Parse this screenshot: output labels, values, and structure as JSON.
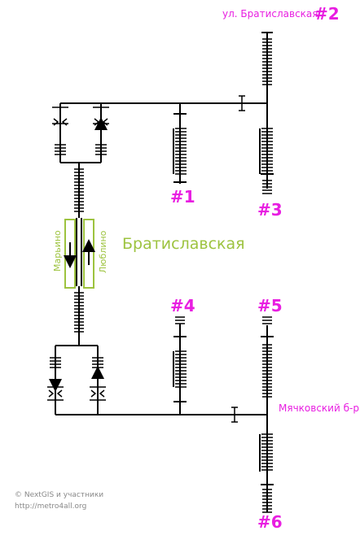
{
  "station_name": "Братиславская",
  "directions": {
    "left": "Марьино",
    "right": "Люблино"
  },
  "streets": {
    "top": "ул. Братиславская",
    "bottom": "Мячковский б-р"
  },
  "exits": {
    "n1": "#1",
    "n2": "#2",
    "n3": "#3",
    "n4": "#4",
    "n5": "#5",
    "n6": "#6"
  },
  "credits": {
    "line1": "© NextGIS и участники",
    "line2": "http://metro4all.org"
  },
  "colors": {
    "accent": "#e81ee1",
    "line": "#9dc33f",
    "stroke": "#000000"
  }
}
